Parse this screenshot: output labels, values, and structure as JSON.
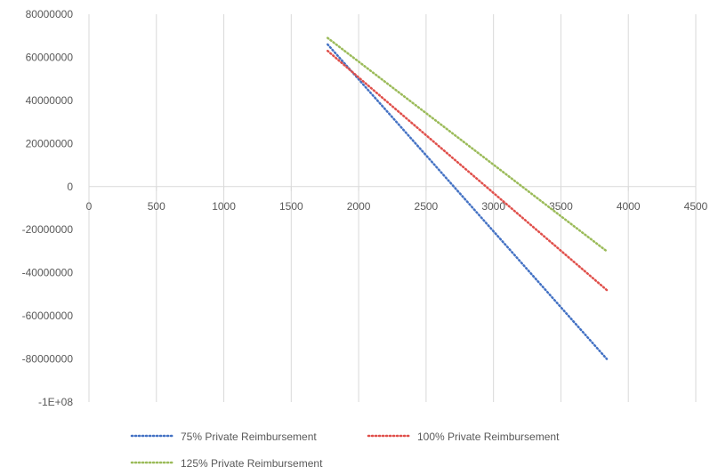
{
  "chart_data": {
    "type": "line",
    "title": "",
    "xlabel": "",
    "ylabel": "",
    "xlim": [
      0,
      4500
    ],
    "ylim": [
      -100000000,
      80000000
    ],
    "x_ticks": [
      0,
      500,
      1000,
      1500,
      2000,
      2500,
      3000,
      3500,
      4000,
      4500
    ],
    "x_tick_labels": [
      "0",
      "500",
      "1000",
      "1500",
      "2000",
      "2500",
      "3000",
      "3500",
      "4000",
      "4500"
    ],
    "y_ticks": [
      80000000,
      60000000,
      40000000,
      20000000,
      0,
      -20000000,
      -40000000,
      -60000000,
      -80000000,
      -100000000
    ],
    "y_tick_labels": [
      "80000000",
      "60000000",
      "40000000",
      "20000000",
      "0",
      "-20000000",
      "-40000000",
      "-60000000",
      "-80000000",
      "-1E+08"
    ],
    "grid": "vertical",
    "legend": "bottom",
    "series": [
      {
        "name": "75% Private Reimbursement",
        "color": "#4472C4",
        "x": [
          1770,
          3840
        ],
        "y": [
          66000000,
          -80000000
        ]
      },
      {
        "name": "100% Private Reimbursement",
        "color": "#E0504B",
        "x": [
          1770,
          3840
        ],
        "y": [
          63000000,
          -48000000
        ]
      },
      {
        "name": "125% Private Reimbursement",
        "color": "#9BBB59",
        "x": [
          1770,
          3840
        ],
        "y": [
          69000000,
          -30000000
        ]
      }
    ]
  }
}
